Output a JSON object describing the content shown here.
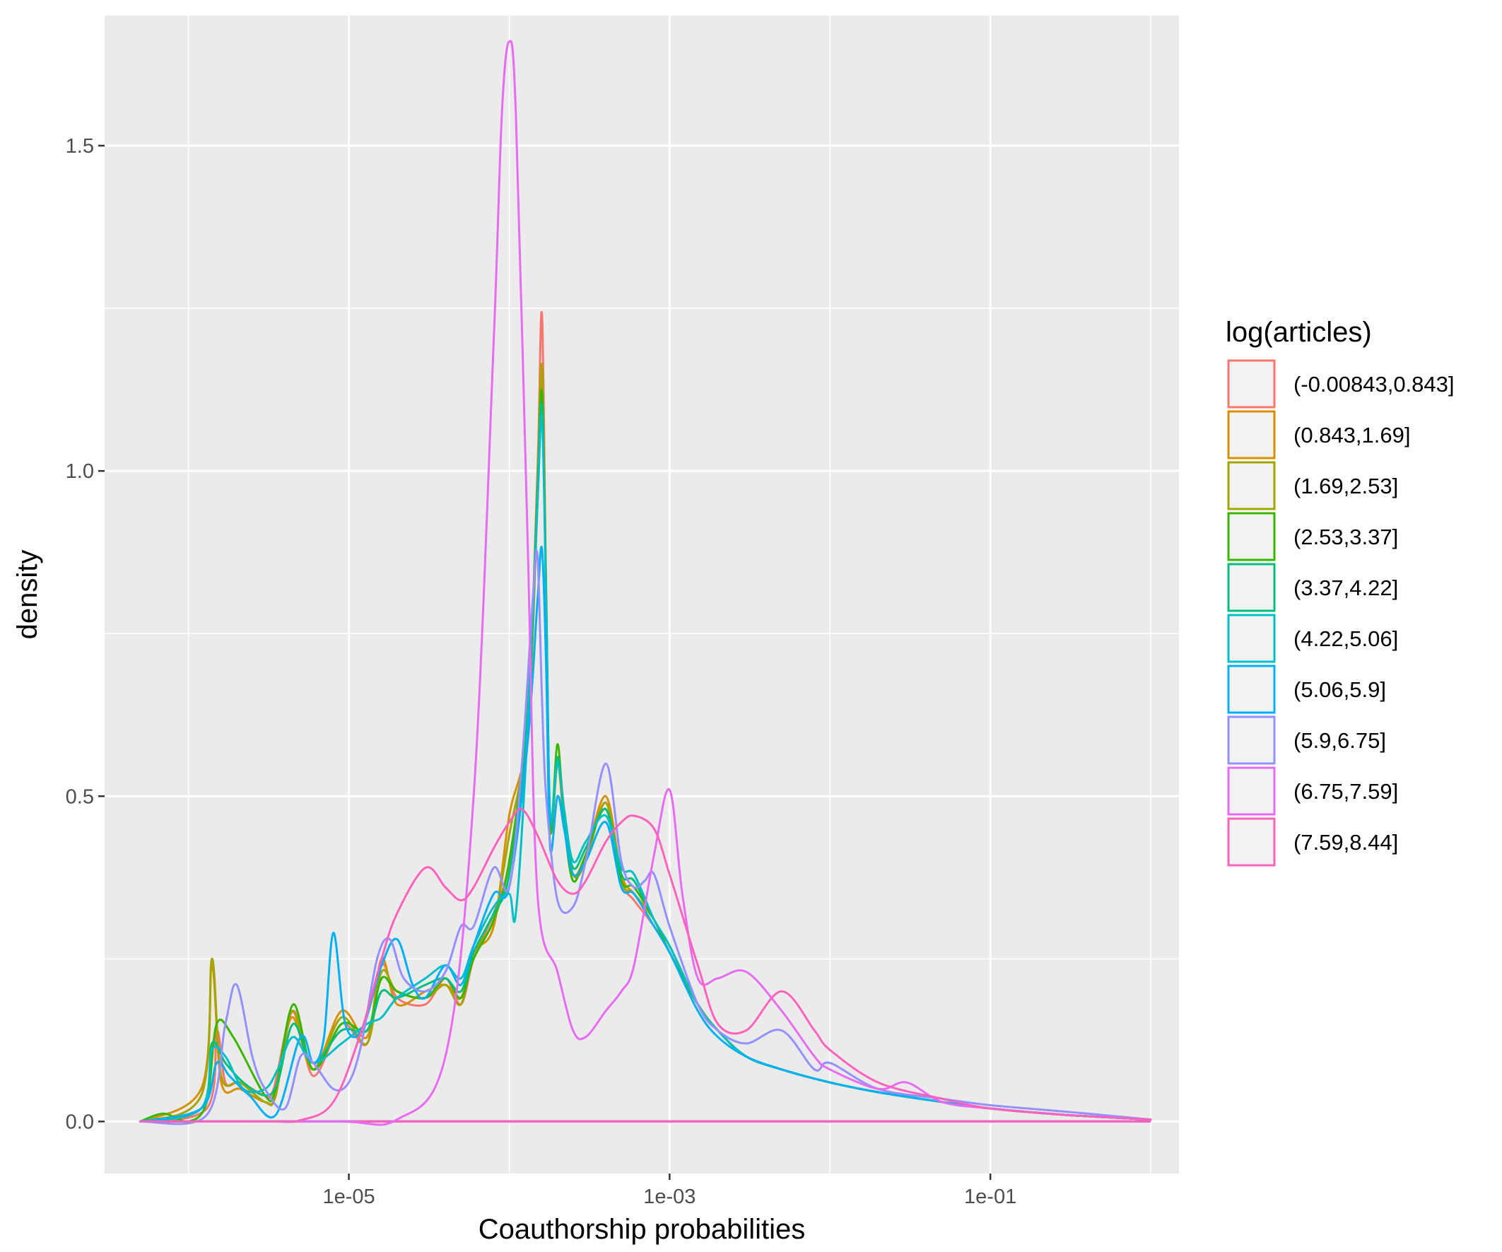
{
  "chart_data": {
    "type": "line",
    "subtype": "density",
    "xlabel": "Coauthorship probabilities",
    "ylabel": "density",
    "x_scale": "log10",
    "xlim": [
      3e-07,
      1.5
    ],
    "ylim": [
      -0.08,
      1.7
    ],
    "x_ticks": [
      {
        "value": 1e-05,
        "label": "1e-05"
      },
      {
        "value": 0.001,
        "label": "1e-03"
      },
      {
        "value": 0.1,
        "label": "1e-01"
      }
    ],
    "x_minor_ticks": [
      1e-06,
      0.0001,
      0.01,
      1
    ],
    "y_ticks": [
      {
        "value": 0.0,
        "label": "0.0"
      },
      {
        "value": 0.5,
        "label": "0.5"
      },
      {
        "value": 1.0,
        "label": "1.0"
      },
      {
        "value": 1.5,
        "label": "1.5"
      }
    ],
    "y_minor_ticks": [
      0.25,
      0.75,
      1.25
    ],
    "grid": true,
    "panel_background": "#ebebeb",
    "legend": {
      "title": "log(articles)",
      "position": "right"
    },
    "series": [
      {
        "name": "(-0.00843,0.843]",
        "color": "#F8766D",
        "x": [
          5e-07,
          1.3e-06,
          1.5e-06,
          1.7e-06,
          2.1e-06,
          3e-06,
          3.4e-06,
          4.5e-06,
          6e-06,
          9e-06,
          1.3e-05,
          1.6e-05,
          2e-05,
          3e-05,
          4e-05,
          5e-05,
          6e-05,
          8e-05,
          0.0001,
          0.00013,
          0.00015,
          0.00016,
          0.00017,
          0.00018,
          0.0002,
          0.00022,
          0.00025,
          0.0003,
          0.0004,
          0.0005,
          0.0006,
          0.0008,
          0.001,
          0.0015,
          0.002,
          0.003,
          0.005,
          0.01,
          0.02,
          0.05,
          0.1,
          0.3,
          1.0
        ],
        "y": [
          0,
          0.02,
          0.14,
          0.06,
          0.06,
          0.04,
          0.05,
          0.17,
          0.07,
          0.15,
          0.12,
          0.24,
          0.19,
          0.18,
          0.22,
          0.18,
          0.25,
          0.32,
          0.4,
          0.62,
          1.0,
          1.24,
          0.8,
          0.45,
          0.56,
          0.48,
          0.38,
          0.4,
          0.49,
          0.37,
          0.34,
          0.3,
          0.26,
          0.18,
          0.14,
          0.1,
          0.08,
          0.06,
          0.045,
          0.03,
          0.02,
          0.01,
          0.003
        ]
      },
      {
        "name": "(0.843,1.69]",
        "color": "#D89000",
        "x": [
          5e-07,
          1.2e-06,
          1.4e-06,
          1.6e-06,
          2.1e-06,
          3e-06,
          3.5e-06,
          4.4e-06,
          6e-06,
          9e-06,
          1.3e-05,
          1.6e-05,
          2e-05,
          3e-05,
          4e-05,
          5e-05,
          6e-05,
          8e-05,
          0.0001,
          0.00013,
          0.00015,
          0.00016,
          0.00017,
          0.00018,
          0.0002,
          0.00022,
          0.00025,
          0.0003,
          0.0004,
          0.0005,
          0.0006,
          0.0008,
          0.001,
          0.0015,
          0.002,
          0.003,
          0.005,
          0.01,
          0.02,
          0.05,
          0.1,
          0.3,
          1.0
        ],
        "y": [
          0,
          0.05,
          0.24,
          0.06,
          0.05,
          0.03,
          0.04,
          0.16,
          0.08,
          0.17,
          0.13,
          0.25,
          0.18,
          0.2,
          0.21,
          0.19,
          0.26,
          0.3,
          0.47,
          0.6,
          0.95,
          1.14,
          0.82,
          0.46,
          0.55,
          0.46,
          0.38,
          0.41,
          0.5,
          0.38,
          0.35,
          0.31,
          0.26,
          0.18,
          0.14,
          0.1,
          0.08,
          0.06,
          0.045,
          0.03,
          0.02,
          0.01,
          0.003
        ]
      },
      {
        "name": "(1.69,2.53]",
        "color": "#A3A500",
        "x": [
          5e-07,
          1.2e-06,
          1.4e-06,
          1.6e-06,
          2.1e-06,
          3e-06,
          3.5e-06,
          4.4e-06,
          6e-06,
          9e-06,
          1.3e-05,
          1.6e-05,
          2e-05,
          3e-05,
          4e-05,
          5e-05,
          6e-05,
          8e-05,
          0.0001,
          0.00013,
          0.00015,
          0.00016,
          0.00017,
          0.00018,
          0.0002,
          0.00022,
          0.00025,
          0.0003,
          0.0004,
          0.0005,
          0.0006,
          0.0008,
          0.001,
          0.0015,
          0.002,
          0.003,
          0.005,
          0.01,
          0.02,
          0.05,
          0.1,
          0.3,
          1.0
        ],
        "y": [
          0,
          0.04,
          0.25,
          0.07,
          0.06,
          0.03,
          0.04,
          0.17,
          0.08,
          0.16,
          0.12,
          0.23,
          0.2,
          0.19,
          0.21,
          0.18,
          0.26,
          0.31,
          0.44,
          0.61,
          0.98,
          1.16,
          0.8,
          0.45,
          0.55,
          0.47,
          0.38,
          0.4,
          0.49,
          0.37,
          0.35,
          0.31,
          0.26,
          0.18,
          0.14,
          0.1,
          0.08,
          0.06,
          0.045,
          0.03,
          0.02,
          0.01,
          0.003
        ]
      },
      {
        "name": "(2.53,3.37]",
        "color": "#39B600",
        "x": [
          5e-07,
          7e-07,
          1e-06,
          1.3e-06,
          1.5e-06,
          1.9e-06,
          3e-06,
          3.5e-06,
          4.5e-06,
          6e-06,
          9e-06,
          1.3e-05,
          1.6e-05,
          2e-05,
          3e-05,
          4e-05,
          5e-05,
          6e-05,
          8e-05,
          0.0001,
          0.00013,
          0.00015,
          0.00016,
          0.00017,
          0.00018,
          0.0002,
          0.00022,
          0.00025,
          0.0003,
          0.0004,
          0.0005,
          0.0006,
          0.0008,
          0.001,
          0.0015,
          0.002,
          0.003,
          0.005,
          0.01,
          0.02,
          0.05,
          0.1,
          0.3,
          1.0
        ],
        "y": [
          0,
          0.012,
          0,
          0.03,
          0.15,
          0.13,
          0.04,
          0.05,
          0.18,
          0.08,
          0.15,
          0.14,
          0.22,
          0.2,
          0.19,
          0.22,
          0.19,
          0.25,
          0.31,
          0.4,
          0.63,
          0.97,
          1.12,
          0.8,
          0.45,
          0.58,
          0.46,
          0.37,
          0.41,
          0.48,
          0.37,
          0.36,
          0.31,
          0.26,
          0.18,
          0.14,
          0.1,
          0.08,
          0.06,
          0.045,
          0.03,
          0.02,
          0.01,
          0.003
        ]
      },
      {
        "name": "(3.37,4.22]",
        "color": "#00BF7D",
        "x": [
          5e-07,
          1.2e-06,
          1.4e-06,
          1.7e-06,
          2.2e-06,
          3e-06,
          3.6e-06,
          4.5e-06,
          6e-06,
          9e-06,
          1.3e-05,
          1.6e-05,
          2e-05,
          3e-05,
          4e-05,
          5e-05,
          6e-05,
          8e-05,
          0.0001,
          0.00013,
          0.00015,
          0.00016,
          0.00017,
          0.00018,
          0.0002,
          0.00022,
          0.00025,
          0.0003,
          0.0004,
          0.0005,
          0.0006,
          0.0008,
          0.001,
          0.0015,
          0.002,
          0.003,
          0.005,
          0.01,
          0.02,
          0.05,
          0.1,
          0.3,
          1.0
        ],
        "y": [
          0,
          0.02,
          0.12,
          0.09,
          0.06,
          0.04,
          0.06,
          0.15,
          0.09,
          0.14,
          0.14,
          0.2,
          0.19,
          0.21,
          0.22,
          0.2,
          0.26,
          0.32,
          0.38,
          0.62,
          0.96,
          1.1,
          0.8,
          0.46,
          0.56,
          0.47,
          0.39,
          0.42,
          0.48,
          0.38,
          0.37,
          0.31,
          0.27,
          0.18,
          0.14,
          0.1,
          0.08,
          0.06,
          0.045,
          0.03,
          0.02,
          0.01,
          0.003
        ]
      },
      {
        "name": "(4.22,5.06]",
        "color": "#00BFC4",
        "x": [
          5e-07,
          1.2e-06,
          1.4e-06,
          1.7e-06,
          2.2e-06,
          3e-06,
          3.6e-06,
          4.5e-06,
          6e-06,
          9e-06,
          1.3e-05,
          1.6e-05,
          2e-05,
          3e-05,
          4e-05,
          5e-05,
          6e-05,
          8e-05,
          0.0001,
          0.00011,
          0.00013,
          0.00015,
          0.00016,
          0.00017,
          0.00018,
          0.0002,
          0.00022,
          0.00025,
          0.0003,
          0.0004,
          0.0005,
          0.0006,
          0.0008,
          0.001,
          0.0015,
          0.002,
          0.003,
          0.005,
          0.01,
          0.02,
          0.05,
          0.1,
          0.3,
          1.0
        ],
        "y": [
          0,
          0.02,
          0.11,
          0.1,
          0.05,
          0.05,
          0.08,
          0.13,
          0.09,
          0.12,
          0.15,
          0.16,
          0.19,
          0.22,
          0.24,
          0.22,
          0.27,
          0.33,
          0.35,
          0.32,
          0.6,
          0.95,
          1.08,
          0.8,
          0.47,
          0.55,
          0.48,
          0.4,
          0.43,
          0.47,
          0.39,
          0.38,
          0.31,
          0.27,
          0.18,
          0.14,
          0.1,
          0.08,
          0.06,
          0.045,
          0.03,
          0.02,
          0.01,
          0.003
        ]
      },
      {
        "name": "(5.06,5.9]",
        "color": "#00B0F6",
        "x": [
          5e-07,
          1.2e-06,
          1.5e-06,
          1.8e-06,
          2.4e-06,
          3.5e-06,
          5e-06,
          6e-06,
          7e-06,
          8e-06,
          9.5e-06,
          1.2e-05,
          1.6e-05,
          2e-05,
          2.5e-05,
          3e-05,
          4e-05,
          5e-05,
          6e-05,
          8e-05,
          0.0001,
          0.00013,
          0.00015,
          0.00016,
          0.00017,
          0.00018,
          0.0002,
          0.00022,
          0.00025,
          0.0003,
          0.0004,
          0.0005,
          0.0006,
          0.0008,
          0.001,
          0.0015,
          0.002,
          0.003,
          0.005,
          0.01,
          0.02,
          0.05,
          0.1,
          0.3,
          1.0
        ],
        "y": [
          0,
          0.02,
          0.09,
          0.07,
          0.04,
          0.01,
          0.13,
          0.09,
          0.13,
          0.29,
          0.15,
          0.14,
          0.24,
          0.28,
          0.21,
          0.19,
          0.24,
          0.21,
          0.27,
          0.35,
          0.36,
          0.58,
          0.8,
          0.88,
          0.7,
          0.42,
          0.5,
          0.45,
          0.38,
          0.4,
          0.46,
          0.36,
          0.35,
          0.3,
          0.26,
          0.17,
          0.13,
          0.1,
          0.08,
          0.06,
          0.045,
          0.03,
          0.02,
          0.01,
          0.003
        ]
      },
      {
        "name": "(5.9,6.75]",
        "color": "#9590FF",
        "x": [
          5e-07,
          1.3e-06,
          1.7e-06,
          2e-06,
          2.5e-06,
          3e-06,
          4e-06,
          5e-06,
          6e-06,
          8e-06,
          1e-05,
          1.2e-05,
          1.5e-05,
          1.8e-05,
          2.2e-05,
          3e-05,
          4e-05,
          5e-05,
          6e-05,
          8e-05,
          0.0001,
          0.00012,
          0.00014,
          0.00015,
          0.00016,
          0.00017,
          0.0002,
          0.00025,
          0.0003,
          0.0004,
          0.0005,
          0.0006,
          0.0007,
          0.0008,
          0.001,
          0.0015,
          0.002,
          0.003,
          0.005,
          0.008,
          0.01,
          0.02,
          0.05,
          0.1,
          0.3,
          1.0
        ],
        "y": [
          0,
          0.01,
          0.15,
          0.21,
          0.1,
          0.05,
          0.02,
          0.1,
          0.09,
          0.05,
          0.06,
          0.12,
          0.25,
          0.28,
          0.22,
          0.2,
          0.23,
          0.3,
          0.3,
          0.39,
          0.36,
          0.55,
          0.8,
          0.87,
          0.65,
          0.5,
          0.34,
          0.33,
          0.4,
          0.55,
          0.4,
          0.36,
          0.37,
          0.38,
          0.3,
          0.18,
          0.14,
          0.12,
          0.14,
          0.08,
          0.09,
          0.05,
          0.035,
          0.025,
          0.015,
          0.003
        ]
      },
      {
        "name": "(6.75,7.59]",
        "color": "#E76BF3",
        "x": [
          5e-07,
          8e-06,
          2e-05,
          4e-05,
          6e-05,
          8e-05,
          9e-05,
          0.0001,
          0.00011,
          0.00013,
          0.00015,
          0.0002,
          0.00025,
          0.0003,
          0.0004,
          0.0005,
          0.0006,
          0.0008,
          0.001,
          0.0012,
          0.0015,
          0.002,
          0.003,
          0.005,
          0.008,
          0.01,
          0.02,
          0.03,
          0.05,
          0.1,
          0.3,
          1.0
        ],
        "y": [
          0,
          0,
          0.003,
          0.1,
          0.5,
          1.2,
          1.55,
          1.66,
          1.55,
          0.9,
          0.35,
          0.23,
          0.14,
          0.13,
          0.17,
          0.2,
          0.24,
          0.41,
          0.51,
          0.35,
          0.22,
          0.22,
          0.23,
          0.17,
          0.1,
          0.08,
          0.05,
          0.06,
          0.03,
          0.02,
          0.01,
          0.003
        ]
      },
      {
        "name": "(7.59,8.44]",
        "color": "#FF62BC",
        "x": [
          5e-07,
          3e-06,
          5e-06,
          8e-06,
          1.2e-05,
          1.6e-05,
          2e-05,
          3e-05,
          4e-05,
          5e-05,
          6e-05,
          8e-05,
          0.0001,
          0.00012,
          0.00015,
          0.0002,
          0.00025,
          0.0003,
          0.0004,
          0.0005,
          0.0006,
          0.0008,
          0.001,
          0.0015,
          0.002,
          0.003,
          0.005,
          0.008,
          0.01,
          0.02,
          0.05,
          0.1,
          0.3,
          1.0
        ],
        "y": [
          0,
          0,
          0.002,
          0.03,
          0.14,
          0.25,
          0.32,
          0.39,
          0.36,
          0.34,
          0.36,
          0.42,
          0.46,
          0.48,
          0.44,
          0.37,
          0.35,
          0.37,
          0.43,
          0.46,
          0.47,
          0.45,
          0.38,
          0.24,
          0.15,
          0.14,
          0.2,
          0.14,
          0.11,
          0.06,
          0.035,
          0.02,
          0.01,
          0.003
        ]
      }
    ]
  }
}
